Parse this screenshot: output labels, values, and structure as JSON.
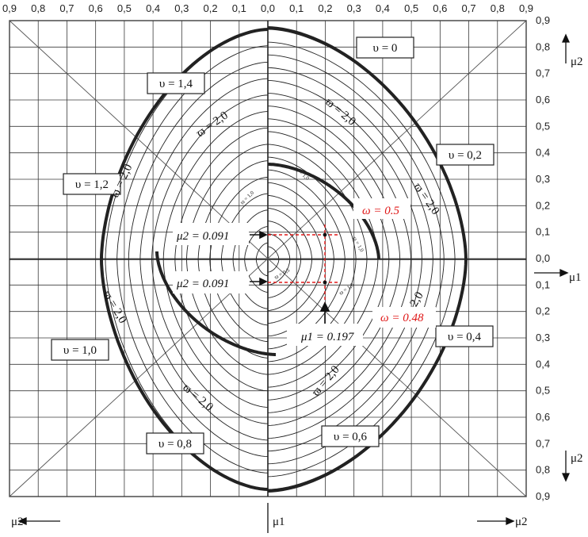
{
  "tick_labels_top": [
    "0,9",
    "0,8",
    "0,7",
    "0,6",
    "0,5",
    "0,4",
    "0,3",
    "0,2",
    "0,1",
    "0,0",
    "0,1",
    "0,2",
    "0,3",
    "0,4",
    "0,5",
    "0,6",
    "0,7",
    "0,8",
    "0,9"
  ],
  "tick_labels_right": [
    "0,9",
    "0,8",
    "0,7",
    "0,6",
    "0,5",
    "0,4",
    "0,3",
    "0,2",
    "0,1",
    "0,0",
    "0,1",
    "0,2",
    "0,3",
    "0,4",
    "0,5",
    "0,6",
    "0,7",
    "0,8",
    "0,9"
  ],
  "axes": {
    "mu2_top": "μ2",
    "mu1_right": "μ1",
    "mu2_bottom_right": "μ2",
    "mu2_footer_left": "μ2",
    "mu1_footer_center": "μ1",
    "mu2_footer_right": "μ2"
  },
  "zones": [
    {
      "label": "υ = 0"
    },
    {
      "label": "υ = 1,4"
    },
    {
      "label": "υ = 0,2"
    },
    {
      "label": "υ = 1,2"
    },
    {
      "label": "υ = 1,0"
    },
    {
      "label": "υ = 0,4"
    },
    {
      "label": "υ = 0,8"
    },
    {
      "label": "υ = 0,6"
    }
  ],
  "contour_labels": [
    "ϖ = 2,0",
    "ϖ = 2,0",
    "ϖ = 2,0",
    "ϖ = 2,0",
    "ϖ = 2,0",
    "ϖ = 2,0",
    "ϖ = 2,0",
    "ϖ = 2,0"
  ],
  "annotations": {
    "mu2_upper": "μ2 = 0.091",
    "mu2_lower": "μ2 = 0.091",
    "mu1": "μ1 = 0.197",
    "omega_upper": "ω = 0.5",
    "omega_lower": "ω = 0.48"
  },
  "colors": {
    "annotation_red": "#e01818",
    "ink": "#222222"
  }
}
